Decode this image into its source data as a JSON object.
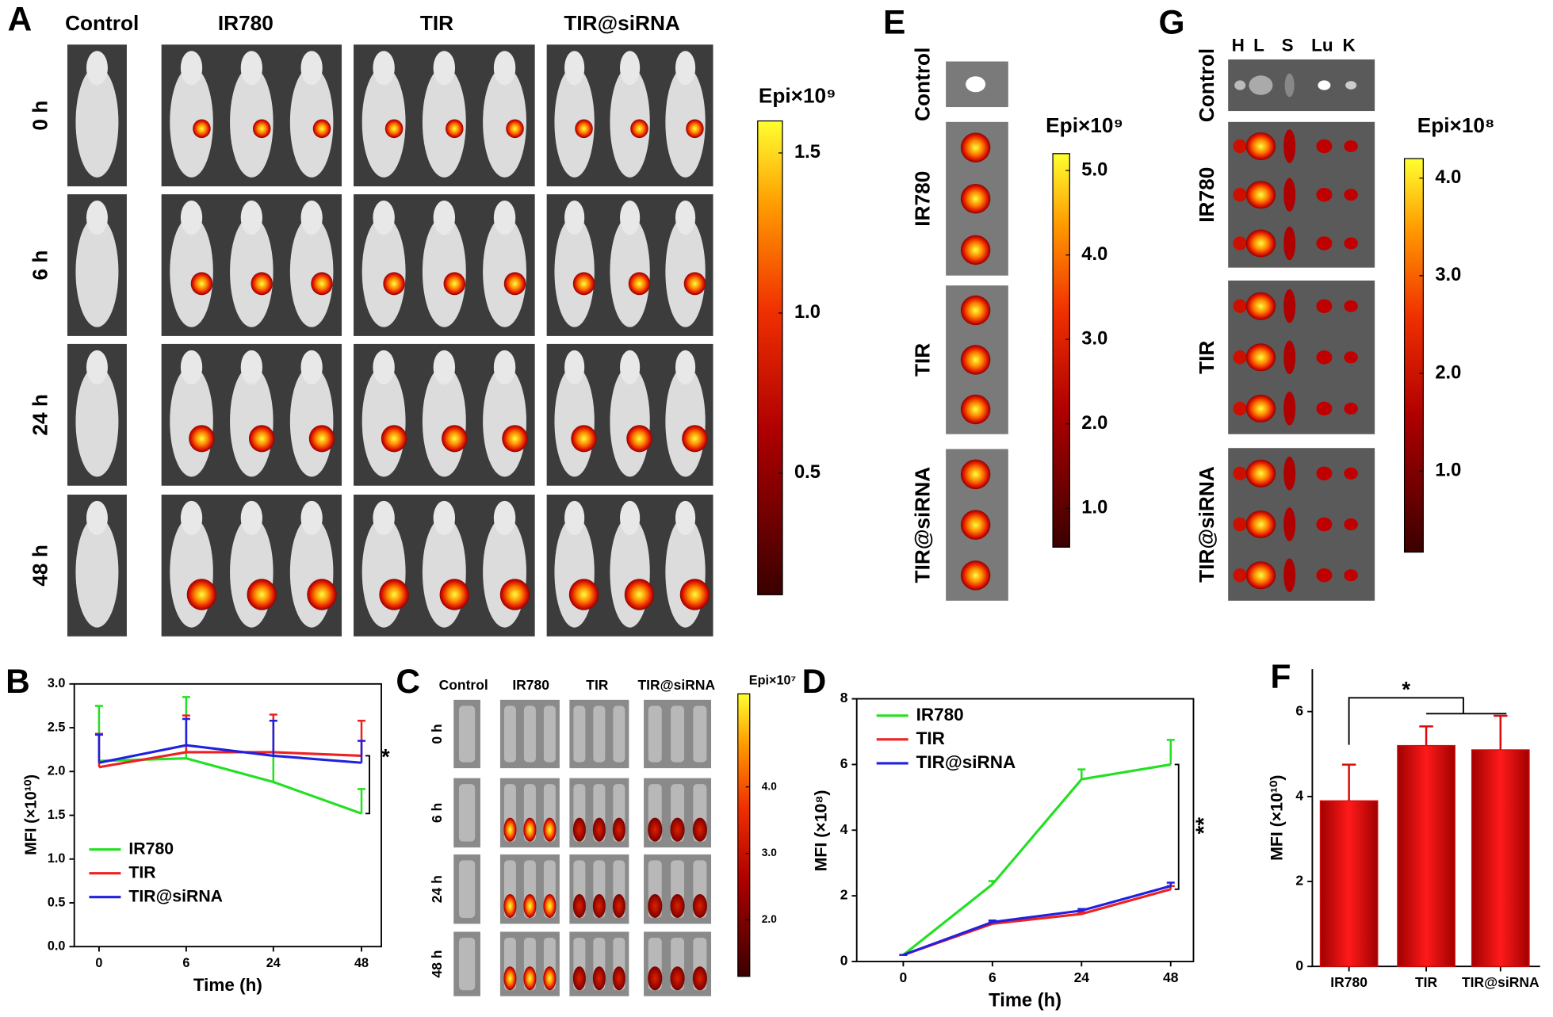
{
  "panel_labels": [
    "A",
    "B",
    "C",
    "D",
    "E",
    "F",
    "G"
  ],
  "panel_a": {
    "columns": [
      "Control",
      "IR780",
      "TIR",
      "TIR@siRNA"
    ],
    "rows": [
      "0 h",
      "6 h",
      "24 h",
      "48 h"
    ],
    "colorbar": {
      "title": "Epi×10⁹",
      "lim": [
        0.12,
        1.6
      ],
      "ticks": [
        0.5,
        {
          "value": 1,
          "label": "1.0"
        },
        1.5
      ]
    }
  },
  "panel_c": {
    "columns": [
      "Control",
      "IR780",
      "TIR",
      "TIR@siRNA"
    ],
    "rows": [
      "0 h",
      "6 h",
      "24 h",
      "48 h"
    ],
    "colorbar": {
      "title": "Epi×10⁷",
      "lim": [
        1.15,
        5.4
      ],
      "ticks": [
        {
          "value": 2,
          "label": "2.0"
        },
        {
          "value": 3,
          "label": "3.0"
        },
        {
          "value": 4,
          "label": "4.0"
        }
      ]
    }
  },
  "panel_e": {
    "rows": [
      "Control",
      "IR780",
      "TIR",
      "TIR@siRNA"
    ],
    "colorbar": {
      "title": "Epi×10⁹",
      "lim": [
        0.54,
        5.2
      ],
      "ticks": [
        {
          "value": 1,
          "label": "1.0"
        },
        {
          "value": 2,
          "label": "2.0"
        },
        {
          "value": 3,
          "label": "3.0"
        },
        {
          "value": 4,
          "label": "4.0"
        },
        {
          "value": 5,
          "label": "5.0"
        }
      ]
    }
  },
  "panel_g": {
    "organs": [
      "H",
      "L",
      "S",
      "Lu",
      "K"
    ],
    "rows": [
      "Control",
      "IR780",
      "TIR",
      "TIR@siRNA"
    ],
    "colorbar": {
      "title": "Epi×10⁸",
      "lim": [
        0.17,
        4.2
      ],
      "ticks": [
        {
          "value": 1,
          "label": "1.0"
        },
        {
          "value": 2,
          "label": "2.0"
        },
        {
          "value": 3,
          "label": "3.0"
        },
        {
          "value": 4,
          "label": "4.0"
        }
      ]
    }
  },
  "chart_data": [
    {
      "type": "line",
      "xlabel": "Time (h)",
      "ylabel": "MFI (×10¹⁰)",
      "categories": [
        "0",
        "6",
        "24",
        "48"
      ],
      "ylim": [
        0,
        3
      ],
      "yticks": [
        {
          "value": 0,
          "label": "0.0"
        },
        0.5,
        {
          "value": 1,
          "label": "1.0"
        },
        1.5,
        {
          "value": 2,
          "label": "2.0"
        },
        2.5,
        {
          "value": 3,
          "label": "3.0"
        }
      ],
      "series": [
        {
          "name": "IR780",
          "color": "#22e022",
          "values": [
            2.12,
            2.15,
            1.88,
            1.52
          ],
          "errors": [
            0.63,
            0.7,
            0.7,
            0.28
          ]
        },
        {
          "name": "TIR",
          "color": "#ee2020",
          "values": [
            2.05,
            2.22,
            2.22,
            2.18
          ],
          "errors": [
            0.38,
            0.42,
            0.43,
            0.4
          ]
        },
        {
          "name": "TIR@siRNA",
          "color": "#2020e0",
          "values": [
            2.1,
            2.3,
            2.18,
            2.1
          ],
          "errors": [
            0.32,
            0.3,
            0.4,
            0.25
          ]
        }
      ],
      "annotation": "*"
    },
    {
      "type": "line",
      "xlabel": "Time (h)",
      "ylabel": "MFI (×10⁸)",
      "categories": [
        "0",
        "6",
        "24",
        "48"
      ],
      "ylim": [
        0,
        8
      ],
      "yticks": [
        0,
        2,
        4,
        6,
        8
      ],
      "series": [
        {
          "name": "IR780",
          "color": "#22e022",
          "values": [
            0.2,
            2.35,
            5.55,
            6.0
          ],
          "errors": [
            0,
            0.1,
            0.3,
            0.75
          ]
        },
        {
          "name": "TIR",
          "color": "#ee2020",
          "values": [
            0.2,
            1.15,
            1.45,
            2.2
          ],
          "errors": [
            0,
            0.05,
            0.05,
            0.1
          ]
        },
        {
          "name": "TIR@siRNA",
          "color": "#2020e0",
          "values": [
            0.2,
            1.2,
            1.55,
            2.3
          ],
          "errors": [
            0,
            0.05,
            0.05,
            0.1
          ]
        }
      ],
      "annotation": "**"
    },
    {
      "type": "bar",
      "ylabel": "MFI (×10¹⁰)",
      "categories": [
        "IR780",
        "TIR",
        "TIR@siRNA"
      ],
      "values": [
        3.9,
        5.2,
        5.1
      ],
      "errors": [
        0.85,
        0.45,
        0.8
      ],
      "color": "#dd0a0a",
      "ylim": [
        0,
        7
      ],
      "yticks": [
        0,
        2,
        4,
        6
      ],
      "annotation": "*"
    }
  ]
}
